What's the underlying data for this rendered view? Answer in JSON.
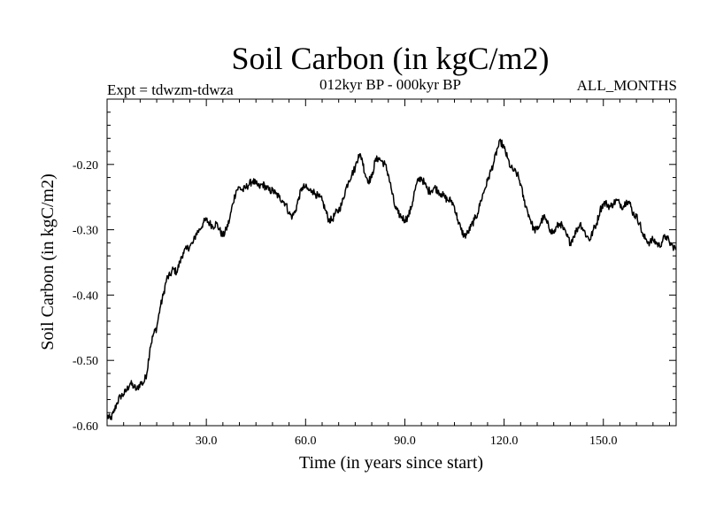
{
  "chart_data": {
    "type": "line",
    "title": "Soil Carbon (in kgC/m2)",
    "expt_label": "Expt = tdwzm-tdwza",
    "period_label": "012kyr BP - 000kyr BP",
    "months_label": "ALL_MONTHS",
    "xlabel": "Time (in years since start)",
    "ylabel": "Soil Carbon (in kgC/m2)",
    "xlim": [
      0,
      172
    ],
    "ylim": [
      -0.6,
      -0.1
    ],
    "x_ticks": [
      30,
      60,
      90,
      120,
      150
    ],
    "x_tick_labels": [
      "30.0",
      "60.0",
      "90.0",
      "120.0",
      "150.0"
    ],
    "y_ticks": [
      -0.6,
      -0.5,
      -0.4,
      -0.3,
      -0.2
    ],
    "y_tick_labels": [
      "-0.60",
      "-0.50",
      "-0.40",
      "-0.30",
      "-0.20"
    ],
    "x_minor_step": 5,
    "y_minor_step": 0.02,
    "grid": false,
    "series": [
      {
        "name": "Soil Carbon",
        "color": "#000000",
        "points": [
          [
            0,
            -0.585
          ],
          [
            1,
            -0.59
          ],
          [
            2,
            -0.58
          ],
          [
            3,
            -0.565
          ],
          [
            4,
            -0.555
          ],
          [
            5,
            -0.552
          ],
          [
            6,
            -0.545
          ],
          [
            7,
            -0.535
          ],
          [
            8,
            -0.54
          ],
          [
            9,
            -0.545
          ],
          [
            10,
            -0.535
          ],
          [
            11,
            -0.535
          ],
          [
            12,
            -0.52
          ],
          [
            13,
            -0.48
          ],
          [
            14,
            -0.46
          ],
          [
            15,
            -0.45
          ],
          [
            16,
            -0.42
          ],
          [
            17,
            -0.4
          ],
          [
            18,
            -0.375
          ],
          [
            19,
            -0.37
          ],
          [
            20,
            -0.36
          ],
          [
            21,
            -0.365
          ],
          [
            22,
            -0.35
          ],
          [
            23,
            -0.335
          ],
          [
            24,
            -0.33
          ],
          [
            25,
            -0.325
          ],
          [
            26,
            -0.32
          ],
          [
            27,
            -0.305
          ],
          [
            28,
            -0.3
          ],
          [
            29,
            -0.29
          ],
          [
            30,
            -0.285
          ],
          [
            31,
            -0.29
          ],
          [
            32,
            -0.295
          ],
          [
            33,
            -0.29
          ],
          [
            34,
            -0.3
          ],
          [
            35,
            -0.31
          ],
          [
            36,
            -0.3
          ],
          [
            37,
            -0.285
          ],
          [
            38,
            -0.26
          ],
          [
            39,
            -0.24
          ],
          [
            40,
            -0.235
          ],
          [
            41,
            -0.24
          ],
          [
            42,
            -0.235
          ],
          [
            43,
            -0.23
          ],
          [
            44,
            -0.225
          ],
          [
            45,
            -0.23
          ],
          [
            46,
            -0.235
          ],
          [
            47,
            -0.23
          ],
          [
            48,
            -0.235
          ],
          [
            49,
            -0.24
          ],
          [
            50,
            -0.24
          ],
          [
            51,
            -0.245
          ],
          [
            52,
            -0.25
          ],
          [
            53,
            -0.255
          ],
          [
            54,
            -0.26
          ],
          [
            55,
            -0.275
          ],
          [
            56,
            -0.28
          ],
          [
            57,
            -0.27
          ],
          [
            58,
            -0.25
          ],
          [
            59,
            -0.235
          ],
          [
            60,
            -0.235
          ],
          [
            61,
            -0.24
          ],
          [
            62,
            -0.24
          ],
          [
            63,
            -0.245
          ],
          [
            64,
            -0.25
          ],
          [
            65,
            -0.255
          ],
          [
            66,
            -0.27
          ],
          [
            67,
            -0.285
          ],
          [
            68,
            -0.285
          ],
          [
            69,
            -0.275
          ],
          [
            70,
            -0.27
          ],
          [
            71,
            -0.26
          ],
          [
            72,
            -0.24
          ],
          [
            73,
            -0.225
          ],
          [
            74,
            -0.215
          ],
          [
            75,
            -0.205
          ],
          [
            76,
            -0.185
          ],
          [
            77,
            -0.19
          ],
          [
            78,
            -0.215
          ],
          [
            79,
            -0.225
          ],
          [
            80,
            -0.22
          ],
          [
            81,
            -0.195
          ],
          [
            82,
            -0.19
          ],
          [
            83,
            -0.195
          ],
          [
            84,
            -0.2
          ],
          [
            85,
            -0.215
          ],
          [
            86,
            -0.24
          ],
          [
            87,
            -0.265
          ],
          [
            88,
            -0.275
          ],
          [
            89,
            -0.28
          ],
          [
            90,
            -0.285
          ],
          [
            91,
            -0.28
          ],
          [
            92,
            -0.265
          ],
          [
            93,
            -0.24
          ],
          [
            94,
            -0.225
          ],
          [
            95,
            -0.22
          ],
          [
            96,
            -0.23
          ],
          [
            97,
            -0.24
          ],
          [
            98,
            -0.24
          ],
          [
            99,
            -0.235
          ],
          [
            100,
            -0.24
          ],
          [
            101,
            -0.245
          ],
          [
            102,
            -0.25
          ],
          [
            103,
            -0.255
          ],
          [
            104,
            -0.255
          ],
          [
            105,
            -0.265
          ],
          [
            106,
            -0.285
          ],
          [
            107,
            -0.3
          ],
          [
            108,
            -0.31
          ],
          [
            109,
            -0.305
          ],
          [
            110,
            -0.295
          ],
          [
            111,
            -0.285
          ],
          [
            112,
            -0.275
          ],
          [
            113,
            -0.255
          ],
          [
            114,
            -0.24
          ],
          [
            115,
            -0.225
          ],
          [
            116,
            -0.21
          ],
          [
            117,
            -0.195
          ],
          [
            118,
            -0.175
          ],
          [
            119,
            -0.165
          ],
          [
            120,
            -0.175
          ],
          [
            121,
            -0.19
          ],
          [
            122,
            -0.205
          ],
          [
            123,
            -0.21
          ],
          [
            124,
            -0.215
          ],
          [
            125,
            -0.23
          ],
          [
            126,
            -0.255
          ],
          [
            127,
            -0.27
          ],
          [
            128,
            -0.285
          ],
          [
            129,
            -0.3
          ],
          [
            130,
            -0.3
          ],
          [
            131,
            -0.29
          ],
          [
            132,
            -0.28
          ],
          [
            133,
            -0.29
          ],
          [
            134,
            -0.3
          ],
          [
            135,
            -0.305
          ],
          [
            136,
            -0.295
          ],
          [
            137,
            -0.29
          ],
          [
            138,
            -0.3
          ],
          [
            139,
            -0.31
          ],
          [
            140,
            -0.32
          ],
          [
            141,
            -0.31
          ],
          [
            142,
            -0.3
          ],
          [
            143,
            -0.29
          ],
          [
            144,
            -0.3
          ],
          [
            145,
            -0.31
          ],
          [
            146,
            -0.315
          ],
          [
            147,
            -0.3
          ],
          [
            148,
            -0.29
          ],
          [
            149,
            -0.27
          ],
          [
            150,
            -0.26
          ],
          [
            151,
            -0.26
          ],
          [
            152,
            -0.265
          ],
          [
            153,
            -0.26
          ],
          [
            154,
            -0.255
          ],
          [
            155,
            -0.26
          ],
          [
            156,
            -0.265
          ],
          [
            157,
            -0.255
          ],
          [
            158,
            -0.26
          ],
          [
            159,
            -0.275
          ],
          [
            160,
            -0.28
          ],
          [
            161,
            -0.29
          ],
          [
            162,
            -0.31
          ],
          [
            163,
            -0.315
          ],
          [
            164,
            -0.32
          ],
          [
            165,
            -0.315
          ],
          [
            166,
            -0.32
          ],
          [
            167,
            -0.325
          ],
          [
            168,
            -0.315
          ],
          [
            169,
            -0.31
          ],
          [
            170,
            -0.32
          ],
          [
            171,
            -0.325
          ],
          [
            172,
            -0.33
          ]
        ]
      }
    ]
  }
}
